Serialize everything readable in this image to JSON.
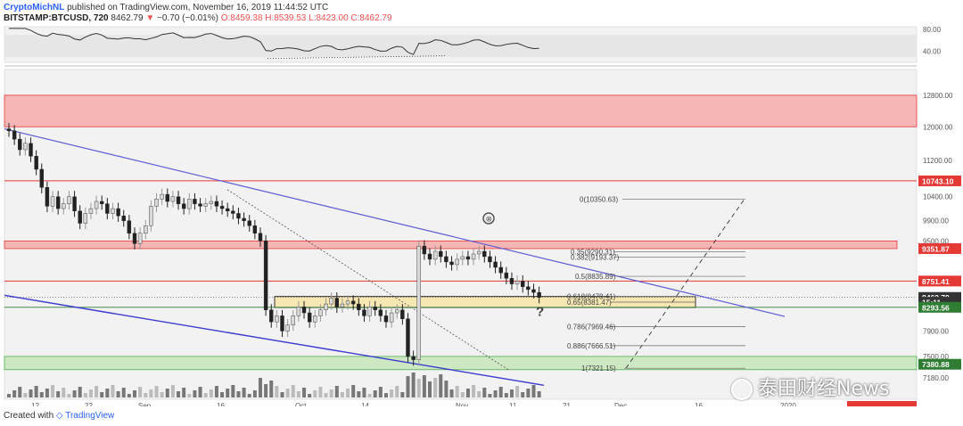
{
  "header": {
    "author": "CryptoMichNL",
    "published": "published on TradingView.com, November 16, 2019 11:44:52 UTC",
    "symbol": "BITSTAMP:BTCUSD, 720",
    "last": "8462.79",
    "change_arrow": "▼",
    "change": "−0.70 (−0.01%)",
    "ohlc": "O:8459.38 H:8539.53 L:8423.00 C:8462.79"
  },
  "footer": {
    "created_with": "Created with",
    "tv": "TradingView"
  },
  "watermark": "泰田财经News",
  "colors": {
    "resistance_zone": "#f7b6b6",
    "support_zone": "#cfe8c4",
    "golden_zone": "#f6e7b3",
    "trendline": "#5b5bd6",
    "red_line": "#e53935",
    "bull": "#222222",
    "bear": "#cccccc"
  },
  "chart_data": {
    "type": "candlestick",
    "symbol": "BITSTAMP:BTCUSD",
    "interval": "720",
    "price_axis": {
      "ticks": [
        "12800.00",
        "12000.00",
        "11200.00",
        "10400.00",
        "9900.00",
        "9500.00",
        "7900.00",
        "7500.00",
        "7180.00"
      ],
      "scale": "log"
    },
    "rsi_axis": {
      "ticks": [
        "80.00",
        "40.00"
      ]
    },
    "time_axis": {
      "ticks": [
        "12",
        "22",
        "Sep",
        "16",
        "Oct",
        "14",
        "Nov",
        "11",
        "21",
        "Dec",
        "16",
        "2020"
      ]
    },
    "price_labels": [
      {
        "text": "10743.10",
        "value": 10743.1,
        "color": "#e53935"
      },
      {
        "text": "9351.87",
        "value": 9351.87,
        "color": "#e53935"
      },
      {
        "text": "8751.41",
        "value": 8751.41,
        "color": "#e53935"
      },
      {
        "text": "8462.79",
        "value": 8462.79,
        "color": "#333333"
      },
      {
        "text": "15:11",
        "value": 8380,
        "color": "#333333"
      },
      {
        "text": "8293.56",
        "value": 8293.56,
        "color": "#2e7d32"
      },
      {
        "text": "7380.88",
        "value": 7380.88,
        "color": "#2e7d32"
      }
    ],
    "zones": [
      {
        "name": "resistance",
        "from": 12000,
        "to": 12800
      },
      {
        "name": "resistance",
        "from": 9351.87,
        "to": 9500
      },
      {
        "name": "support",
        "from": 7300,
        "to": 7500
      }
    ],
    "fibonacci": [
      {
        "text": "0(10350.63)",
        "level": 10350.63
      },
      {
        "text": "0.35(9290.31)",
        "level": 9290.31
      },
      {
        "text": "0.382(9193.37)",
        "level": 9193.37
      },
      {
        "text": "0.5(8835.89)",
        "level": 8835.89
      },
      {
        "text": "0.618(8478.41)",
        "level": 8478.41
      },
      {
        "text": "0.65(8381.47)",
        "level": 8381.47
      },
      {
        "text": "0.786(7969.46)",
        "level": 7969.46
      },
      {
        "text": "0.886(7666.51)",
        "level": 7666.51
      },
      {
        "text": "1(7321.15)",
        "level": 7321.15
      }
    ],
    "annotations": [
      "?"
    ],
    "candles_close": [
      11900,
      11700,
      11450,
      11600,
      11300,
      11000,
      10600,
      10200,
      10400,
      10150,
      10250,
      10400,
      10100,
      9850,
      10050,
      10150,
      10300,
      10250,
      10050,
      10150,
      10000,
      9900,
      9650,
      9450,
      9650,
      9800,
      10200,
      10350,
      10450,
      10300,
      10400,
      10250,
      10150,
      10350,
      10250,
      10200,
      10250,
      10300,
      10200,
      10150,
      10100,
      10050,
      9950,
      9900,
      9800,
      9650,
      9500,
      8250,
      8050,
      8150,
      7900,
      8000,
      8150,
      8300,
      8200,
      8050,
      8150,
      8250,
      8350,
      8450,
      8300,
      8350,
      8400,
      8350,
      8250,
      8150,
      8300,
      8250,
      8150,
      8050,
      8200,
      8250,
      8100,
      7500,
      7450,
      9400,
      9250,
      9150,
      9300,
      9200,
      9100,
      9050,
      9150,
      9200,
      9150,
      9250,
      9300,
      9200,
      9100,
      9000,
      8900,
      8800,
      8700,
      8750,
      8650,
      8600,
      8550,
      8462.79
    ]
  }
}
